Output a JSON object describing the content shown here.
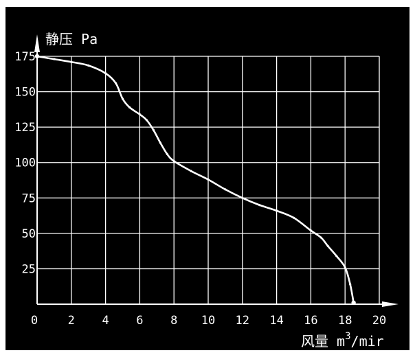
{
  "chart_data": {
    "type": "line",
    "title": "",
    "ylabel": "静压 Pa",
    "xlabel_parts": {
      "main": "风量 m",
      "sup": "3",
      "tail": "/mir"
    },
    "xlim": [
      0,
      20
    ],
    "ylim": [
      0,
      175
    ],
    "x_ticks": [
      "0",
      "2",
      "4",
      "6",
      "8",
      "10",
      "12",
      "14",
      "16",
      "18",
      "20"
    ],
    "y_ticks": [
      "25",
      "50",
      "75",
      "100",
      "125",
      "150",
      "175"
    ],
    "grid": true,
    "series": [
      {
        "values": [
          [
            0,
            175
          ],
          [
            1,
            173
          ],
          [
            2,
            171
          ],
          [
            3,
            168.5
          ],
          [
            4,
            163
          ],
          [
            4.6,
            156
          ],
          [
            5.0,
            145
          ],
          [
            5.4,
            139
          ],
          [
            6.0,
            134
          ],
          [
            6.4,
            130
          ],
          [
            6.8,
            123
          ],
          [
            7.2,
            114
          ],
          [
            7.6,
            106
          ],
          [
            8.0,
            101
          ],
          [
            9.0,
            94
          ],
          [
            10.0,
            88
          ],
          [
            11.0,
            81
          ],
          [
            12.0,
            75
          ],
          [
            13.0,
            70
          ],
          [
            14.0,
            66
          ],
          [
            15.0,
            61
          ],
          [
            16.0,
            52
          ],
          [
            16.6,
            47
          ],
          [
            17.0,
            41
          ],
          [
            17.5,
            34
          ],
          [
            18.0,
            26
          ],
          [
            18.3,
            14
          ],
          [
            18.5,
            1
          ]
        ]
      }
    ],
    "colors": {
      "background": "#000000",
      "grid": "#ffffff",
      "line": "#ffffff",
      "text": "#ffffff"
    }
  }
}
